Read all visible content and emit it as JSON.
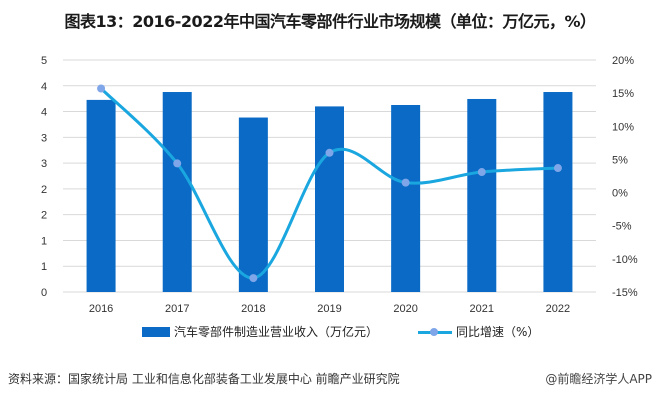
{
  "title": "图表13：2016-2022年中国汽车零部件行业市场规模（单位：万亿元，%）",
  "legend": {
    "bar_label": "汽车零部件制造业营业收入（万亿元）",
    "line_label": "同比增速（%）"
  },
  "footer": {
    "source": "资料来源：国家统计局 工业和信息化部装备工业发展中心 前瞻产业研究院",
    "credit": "@前瞻经济学人APP"
  },
  "axes": {
    "left_ticks": [
      "0",
      "1",
      "1",
      "2",
      "2",
      "3",
      "3",
      "4",
      "4",
      "5"
    ],
    "right_ticks": [
      "-15%",
      "-10%",
      "-5%",
      "0%",
      "5%",
      "10%",
      "15%",
      "20%"
    ]
  },
  "colors": {
    "bar": "#0a6ac5",
    "line": "#1aa7e0",
    "marker": "#7fa6e8",
    "grid": "#d9d9d9"
  },
  "chart_data": {
    "type": "bar",
    "title": "图表13：2016-2022年中国汽车零部件行业市场规模（单位：万亿元，%）",
    "categories": [
      "2016",
      "2017",
      "2018",
      "2019",
      "2020",
      "2021",
      "2022"
    ],
    "series": [
      {
        "name": "汽车零部件制造业营业收入（万亿元）",
        "type": "bar",
        "axis": "left",
        "values": [
          4.14,
          4.31,
          3.76,
          4.0,
          4.03,
          4.16,
          4.31
        ]
      },
      {
        "name": "同比增速（%）",
        "type": "line",
        "axis": "right",
        "values": [
          15.7,
          4.4,
          -12.9,
          6.0,
          1.5,
          3.1,
          3.7
        ]
      }
    ],
    "xlabel": "",
    "ylabel": "",
    "ylim": [
      0,
      5
    ],
    "y2lim": [
      -15,
      20
    ],
    "grid": true,
    "legend_position": "bottom"
  }
}
